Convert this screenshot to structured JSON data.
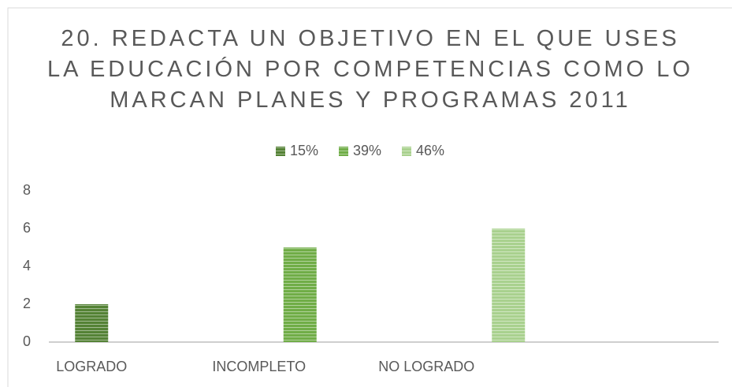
{
  "chart_data": {
    "type": "bar",
    "title": "20. REDACTA UN OBJETIVO EN EL QUE USES LA EDUCACIÓN POR COMPETENCIAS COMO LO MARCAN PLANES Y PROGRAMAS 2011",
    "categories": [
      "LOGRADO",
      "INCOMPLETO",
      "NO LOGRADO",
      null
    ],
    "series": [
      {
        "name": "15%",
        "color": "#548235",
        "values": [
          2,
          null,
          null,
          null
        ]
      },
      {
        "name": "39%",
        "color": "#70ad47",
        "values": [
          null,
          5,
          null,
          null
        ]
      },
      {
        "name": "46%",
        "color": "#a9d18e",
        "values": [
          null,
          null,
          6,
          null
        ]
      }
    ],
    "ylim": [
      0,
      8
    ],
    "yticks": [
      0,
      2,
      4,
      6,
      8
    ],
    "grid": false,
    "legend": "top"
  }
}
